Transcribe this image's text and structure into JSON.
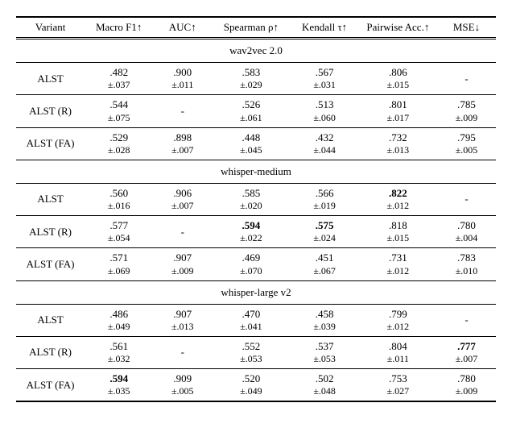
{
  "columns": [
    "Variant",
    "Macro F1↑",
    "AUC↑",
    "Spearman ρ↑",
    "Kendall τ↑",
    "Pairwise Acc.↑",
    "MSE↓"
  ],
  "sections": [
    {
      "title": "wav2vec 2.0",
      "rows": [
        {
          "variant": "ALST",
          "f1": ".482",
          "f1pm": "±.037",
          "auc": ".900",
          "aucpm": "±.011",
          "sp": ".583",
          "sppm": "±.029",
          "kt": ".567",
          "ktpm": "±.031",
          "pa": ".806",
          "papm": "±.015",
          "mse": "-",
          "msepm": ""
        },
        {
          "variant": "ALST (R)",
          "f1": ".544",
          "f1pm": "±.075",
          "auc": "-",
          "aucpm": "",
          "sp": ".526",
          "sppm": "±.061",
          "kt": ".513",
          "ktpm": "±.060",
          "pa": ".801",
          "papm": "±.017",
          "mse": ".785",
          "msepm": "±.009"
        },
        {
          "variant": "ALST (FA)",
          "f1": ".529",
          "f1pm": "±.028",
          "auc": ".898",
          "aucpm": "±.007",
          "sp": ".448",
          "sppm": "±.045",
          "kt": ".432",
          "ktpm": "±.044",
          "pa": ".732",
          "papm": "±.013",
          "mse": ".795",
          "msepm": "±.005"
        }
      ]
    },
    {
      "title": "whisper-medium",
      "rows": [
        {
          "variant": "ALST",
          "f1": ".560",
          "f1pm": "±.016",
          "auc": ".906",
          "aucpm": "±.007",
          "sp": ".585",
          "sppm": "±.020",
          "kt": ".566",
          "ktpm": "±.019",
          "pa": ".822",
          "papm": "±.012",
          "mse": "-",
          "msepm": "",
          "bold": {
            "pa": true
          }
        },
        {
          "variant": "ALST (R)",
          "f1": ".577",
          "f1pm": "±.054",
          "auc": "-",
          "aucpm": "",
          "sp": ".594",
          "sppm": "±.022",
          "kt": ".575",
          "ktpm": "±.024",
          "pa": ".818",
          "papm": "±.015",
          "mse": ".780",
          "msepm": "±.004",
          "bold": {
            "sp": true,
            "kt": true
          }
        },
        {
          "variant": "ALST (FA)",
          "f1": ".571",
          "f1pm": "±.069",
          "auc": ".907",
          "aucpm": "±.009",
          "sp": ".469",
          "sppm": "±.070",
          "kt": ".451",
          "ktpm": "±.067",
          "pa": ".731",
          "papm": "±.012",
          "mse": ".783",
          "msepm": "±.010"
        }
      ]
    },
    {
      "title": "whisper-large v2",
      "rows": [
        {
          "variant": "ALST",
          "f1": ".486",
          "f1pm": "±.049",
          "auc": ".907",
          "aucpm": "±.013",
          "sp": ".470",
          "sppm": "±.041",
          "kt": ".458",
          "ktpm": "±.039",
          "pa": ".799",
          "papm": "±.012",
          "mse": "-",
          "msepm": ""
        },
        {
          "variant": "ALST (R)",
          "f1": ".561",
          "f1pm": "±.032",
          "auc": "-",
          "aucpm": "",
          "sp": ".552",
          "sppm": "±.053",
          "kt": ".537",
          "ktpm": "±.053",
          "pa": ".804",
          "papm": "±.011",
          "mse": ".777",
          "msepm": "±.007",
          "bold": {
            "mse": true
          }
        },
        {
          "variant": "ALST (FA)",
          "f1": ".594",
          "f1pm": "±.035",
          "auc": ".909",
          "aucpm": "±.005",
          "sp": ".520",
          "sppm": "±.049",
          "kt": ".502",
          "ktpm": "±.048",
          "pa": ".753",
          "papm": "±.027",
          "mse": ".780",
          "msepm": "±.009",
          "bold": {
            "f1": true
          }
        }
      ]
    }
  ],
  "style": {
    "background_color": "#ffffff",
    "text_color": "#000000",
    "font_family": "Times New Roman",
    "base_font_size": 13,
    "pm_font_size": 12,
    "rule_color": "#000000",
    "col_widths_pct": [
      14,
      14,
      12,
      16,
      14,
      16,
      12
    ]
  }
}
